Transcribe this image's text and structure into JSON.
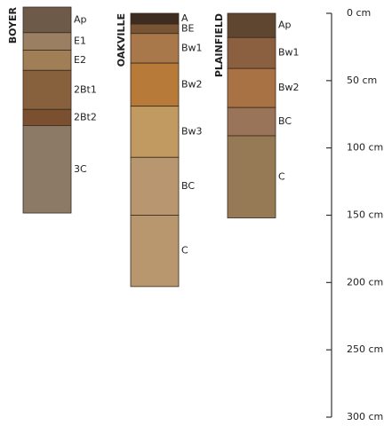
{
  "chart_data": {
    "type": "profile",
    "ylim": [
      0,
      300
    ],
    "yticks": [
      {
        "value": 0,
        "label": "0 cm"
      },
      {
        "value": 50,
        "label": "50 cm"
      },
      {
        "value": 100,
        "label": "100 cm"
      },
      {
        "value": 150,
        "label": "150 cm"
      },
      {
        "value": 200,
        "label": "200 cm"
      },
      {
        "value": 250,
        "label": "250 cm"
      },
      {
        "value": 300,
        "label": "300 cm"
      }
    ],
    "profiles": [
      {
        "name": "BOYER",
        "horizons": [
          {
            "name": "Ap",
            "top": 0,
            "bottom": 19,
            "color": "#6e5a48"
          },
          {
            "name": "E1",
            "top": 19,
            "bottom": 32,
            "color": "#9a7f62"
          },
          {
            "name": "E2",
            "top": 32,
            "bottom": 47,
            "color": "#a07e56"
          },
          {
            "name": "2Bt1",
            "top": 47,
            "bottom": 76,
            "color": "#87603e"
          },
          {
            "name": "2Bt2",
            "top": 76,
            "bottom": 88,
            "color": "#7a5030"
          },
          {
            "name": "3C",
            "top": 88,
            "bottom": 153,
            "color": "#8c7a66"
          }
        ]
      },
      {
        "name": "OAKVILLE",
        "horizons": [
          {
            "name": "A",
            "top": 0,
            "bottom": 8,
            "color": "#3e2c20"
          },
          {
            "name": "BE",
            "top": 8,
            "bottom": 15,
            "color": "#7a5535"
          },
          {
            "name": "Bw1",
            "top": 15,
            "bottom": 37,
            "color": "#a8784a"
          },
          {
            "name": "Bw2",
            "top": 37,
            "bottom": 69,
            "color": "#b87a38"
          },
          {
            "name": "Bw3",
            "top": 69,
            "bottom": 107,
            "color": "#c09a60"
          },
          {
            "name": "BC",
            "top": 107,
            "bottom": 150,
            "color": "#b89670"
          },
          {
            "name": "C",
            "top": 150,
            "bottom": 203,
            "color": "#b8966e"
          }
        ]
      },
      {
        "name": "PLAINFIELD",
        "horizons": [
          {
            "name": "Ap",
            "top": 0,
            "bottom": 18,
            "color": "#5e4630"
          },
          {
            "name": "Bw1",
            "top": 18,
            "bottom": 41,
            "color": "#8a6040"
          },
          {
            "name": "Bw2",
            "top": 41,
            "bottom": 70,
            "color": "#a87244"
          },
          {
            "name": "BC",
            "top": 70,
            "bottom": 91,
            "color": "#9a7458"
          },
          {
            "name": "C",
            "top": 91,
            "bottom": 152,
            "color": "#967a56"
          }
        ]
      }
    ]
  }
}
